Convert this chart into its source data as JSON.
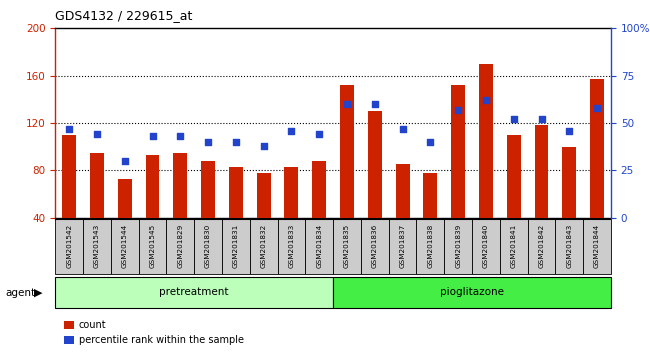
{
  "title": "GDS4132 / 229615_at",
  "samples": [
    "GSM201542",
    "GSM201543",
    "GSM201544",
    "GSM201545",
    "GSM201829",
    "GSM201830",
    "GSM201831",
    "GSM201832",
    "GSM201833",
    "GSM201834",
    "GSM201835",
    "GSM201836",
    "GSM201837",
    "GSM201838",
    "GSM201839",
    "GSM201840",
    "GSM201841",
    "GSM201842",
    "GSM201843",
    "GSM201844"
  ],
  "counts": [
    110,
    95,
    73,
    93,
    95,
    88,
    83,
    78,
    83,
    88,
    152,
    130,
    85,
    78,
    152,
    170,
    110,
    118,
    100,
    157
  ],
  "percentile_ranks": [
    47,
    44,
    30,
    43,
    43,
    40,
    40,
    38,
    46,
    44,
    60,
    60,
    47,
    40,
    57,
    62,
    52,
    52,
    46,
    58
  ],
  "pretreatment_count": 10,
  "pioglitazone_count": 10,
  "ylim_left": [
    40,
    200
  ],
  "ylim_right": [
    0,
    100
  ],
  "yticks_left": [
    40,
    80,
    120,
    160,
    200
  ],
  "yticks_right": [
    0,
    25,
    50,
    75,
    100
  ],
  "ytick_labels_right": [
    "0",
    "25",
    "50",
    "75",
    "100%"
  ],
  "bar_color": "#cc2200",
  "dot_color": "#2244cc",
  "grid_color": "#000000",
  "plot_bg_color": "#ffffff",
  "label_bg_color": "#cccccc",
  "pretreatment_color": "#bbffbb",
  "pioglitazone_color": "#44ee44",
  "agent_label": "agent",
  "legend_count_label": "count",
  "legend_pct_label": "percentile rank within the sample"
}
